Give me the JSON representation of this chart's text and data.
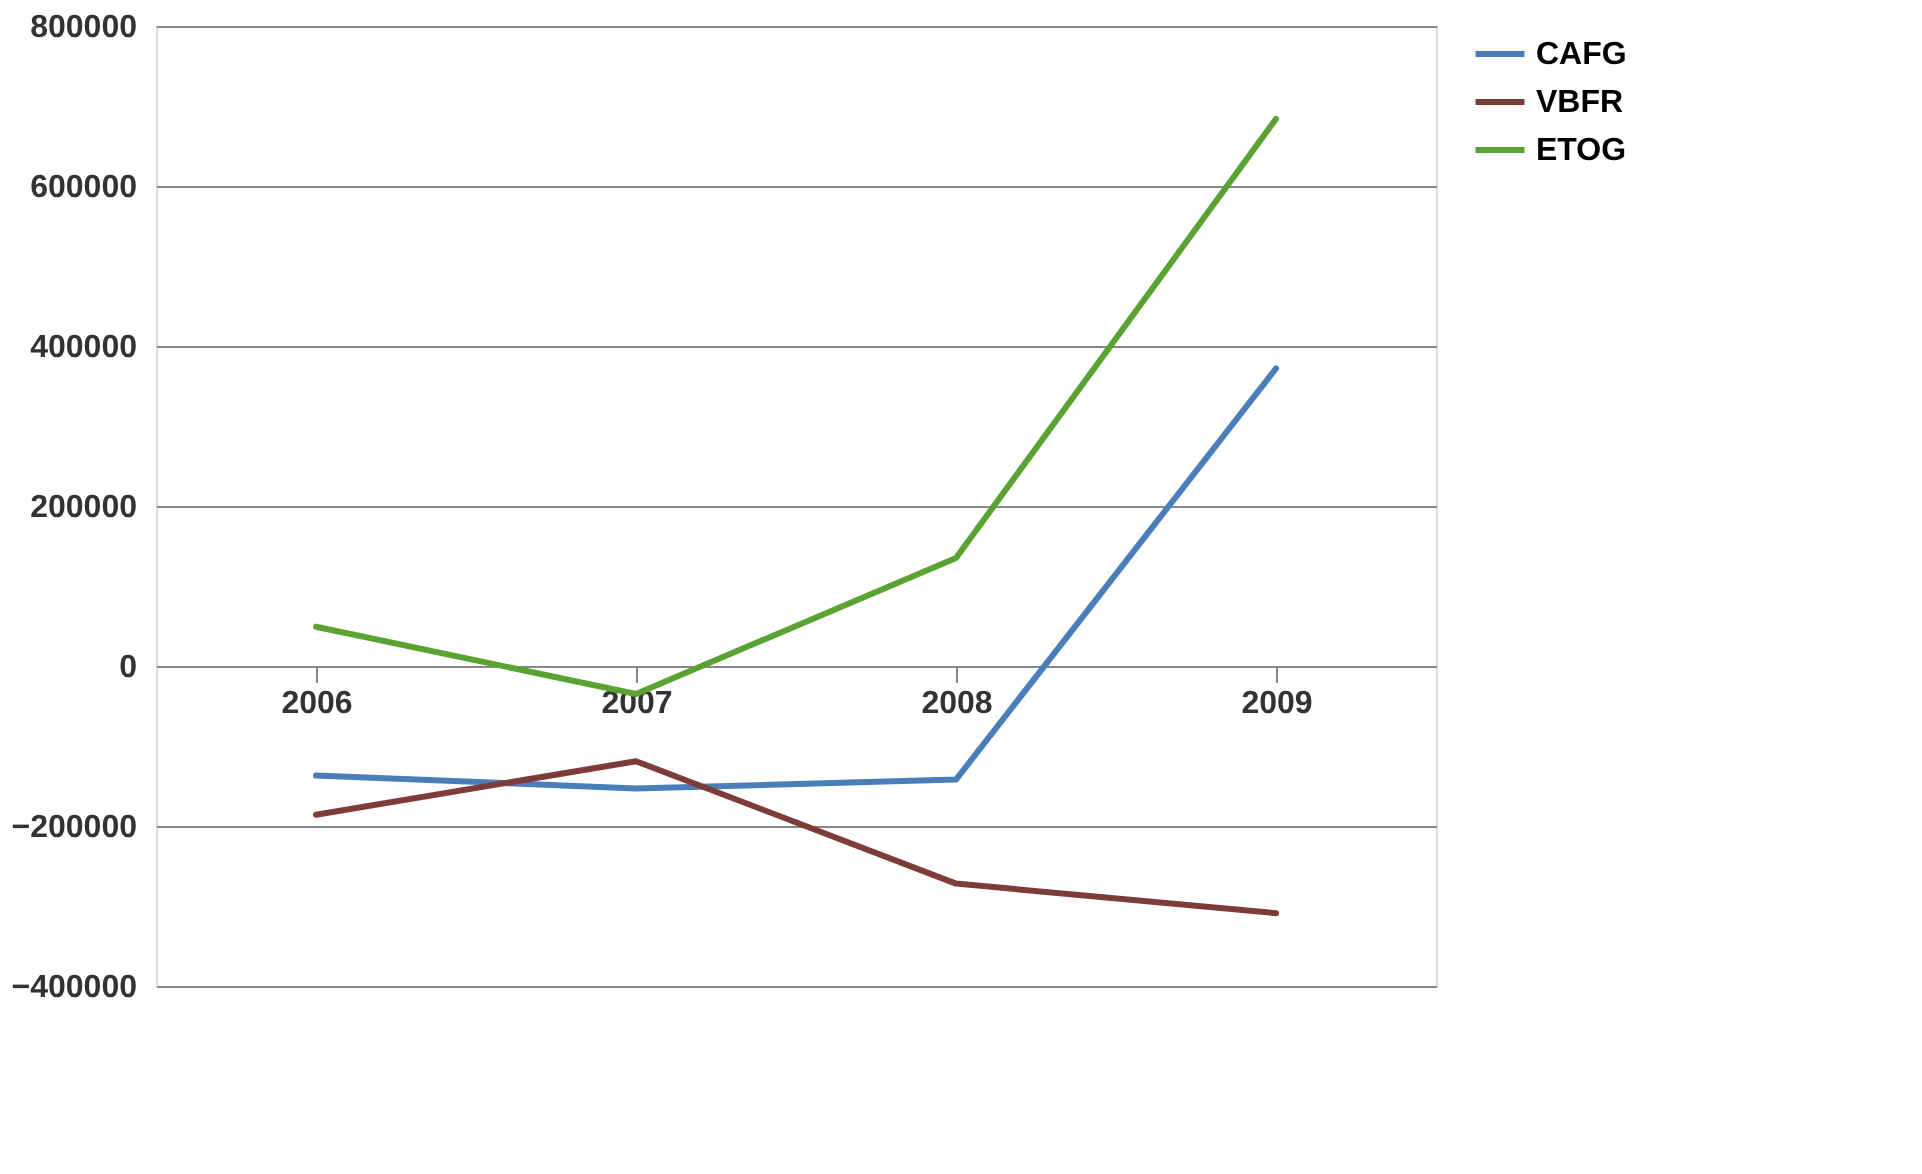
{
  "chart_data": {
    "type": "line",
    "categories": [
      "2006",
      "2007",
      "2008",
      "2009"
    ],
    "series": [
      {
        "name": "CAFG",
        "color": "#4a7ebb",
        "values": [
          -137000,
          -153000,
          -142000,
          372000
        ]
      },
      {
        "name": "VBFR",
        "color": "#7d3c3a",
        "values": [
          -186000,
          -119000,
          -272000,
          -309000
        ]
      },
      {
        "name": "ETOG",
        "color": "#5aa332",
        "values": [
          49000,
          -35000,
          135000,
          684000
        ]
      }
    ],
    "ylim": [
      -400000,
      800000
    ],
    "yticks": [
      -400000,
      -200000,
      0,
      200000,
      400000,
      600000,
      800000
    ],
    "grid": "y",
    "legend": "right",
    "marker": "none",
    "line_style": "solid"
  }
}
